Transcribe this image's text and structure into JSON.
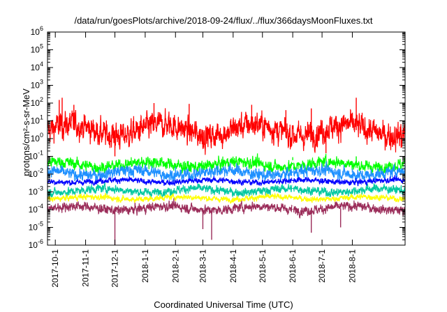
{
  "chart_data": {
    "type": "line",
    "title": "/data/run/goesPlots/archive/2018-09-24/flux/../flux/366daysMoonFluxes.txt",
    "xlabel": "Coordinated Universal Time (UTC)",
    "ylabel": "protons/cm²-s-sr-MeV",
    "y_scale": "log",
    "ylim": [
      1e-06,
      1000000.0
    ],
    "y_ticks": [
      {
        "value": 1e-06,
        "base": "10",
        "exp": "-6"
      },
      {
        "value": 1e-05,
        "base": "10",
        "exp": "-5"
      },
      {
        "value": 0.0001,
        "base": "10",
        "exp": "-4"
      },
      {
        "value": 0.001,
        "base": "10",
        "exp": "-3"
      },
      {
        "value": 0.01,
        "base": "10",
        "exp": "-2"
      },
      {
        "value": 0.1,
        "base": "10",
        "exp": "-1"
      },
      {
        "value": 1,
        "base": "10",
        "exp": "0"
      },
      {
        "value": 10,
        "base": "10",
        "exp": "1"
      },
      {
        "value": 100,
        "base": "10",
        "exp": "2"
      },
      {
        "value": 1000,
        "base": "10",
        "exp": "3"
      },
      {
        "value": 10000,
        "base": "10",
        "exp": "4"
      },
      {
        "value": 100000,
        "base": "10",
        "exp": "5"
      },
      {
        "value": 1000000,
        "base": "10",
        "exp": "6"
      }
    ],
    "xlim": [
      "2017-09-23",
      "2018-09-24"
    ],
    "x_ticks": [
      "2017-10-1",
      "2017-11-1",
      "2017-12-1",
      "2018-1-1",
      "2018-2-1",
      "2018-3-1",
      "2018-4-1",
      "2018-5-1",
      "2018-6-1",
      "2018-7-1",
      "2018-8-1"
    ],
    "grid": false,
    "series": [
      {
        "color": "#ff0000",
        "median": 3.0,
        "noise_decades": 0.55,
        "points": [
          [
            "2017-10-05",
            150
          ],
          [
            "2017-10-08",
            200
          ],
          [
            "2017-10-20",
            80
          ],
          [
            "2017-12-01",
            0.1
          ],
          [
            "2018-01-10",
            100
          ],
          [
            "2018-02-15",
            90
          ],
          [
            "2018-03-01",
            0.3
          ],
          [
            "2018-04-20",
            80
          ],
          [
            "2018-05-25",
            40
          ],
          [
            "2018-06-20",
            50
          ],
          [
            "2018-07-05",
            0.15
          ],
          [
            "2018-08-05",
            200
          ],
          [
            "2018-09-20",
            0.3
          ]
        ]
      },
      {
        "color": "#00ff00",
        "median": 0.035,
        "noise_decades": 0.25,
        "points": [
          [
            "2017-10-01",
            0.07
          ],
          [
            "2018-01-10",
            0.08
          ],
          [
            "2018-06-01",
            0.09
          ],
          [
            "2018-08-05",
            0.1
          ]
        ]
      },
      {
        "color": "#1e90ff",
        "median": 0.012,
        "noise_decades": 0.25,
        "points": [
          [
            "2017-10-01",
            0.02
          ],
          [
            "2018-02-01",
            0.025
          ],
          [
            "2018-08-01",
            0.02
          ]
        ]
      },
      {
        "color": "#0000ff",
        "median": 0.004,
        "noise_decades": 0.12,
        "points": [
          [
            "2017-10-01",
            0.004
          ],
          [
            "2018-05-01",
            0.004
          ],
          [
            "2018-09-20",
            0.004
          ]
        ]
      },
      {
        "color": "#00c8a0",
        "median": 0.0012,
        "noise_decades": 0.18,
        "points": [
          [
            "2017-10-01",
            0.0012
          ],
          [
            "2018-03-01",
            0.0015
          ],
          [
            "2018-09-20",
            0.0012
          ]
        ]
      },
      {
        "color": "#ffff00",
        "median": 0.00045,
        "noise_decades": 0.12,
        "points": [
          [
            "2017-10-01",
            0.0005
          ],
          [
            "2018-06-01",
            0.0004
          ],
          [
            "2018-09-20",
            0.0005
          ]
        ]
      },
      {
        "color": "#9b2d5a",
        "median": 0.00012,
        "noise_decades": 0.2,
        "points": [
          [
            "2017-12-01",
            1e-06
          ],
          [
            "2018-03-01",
            8e-06
          ],
          [
            "2018-03-10",
            2e-06
          ],
          [
            "2018-06-20",
            5e-06
          ],
          [
            "2018-07-20",
            1e-05
          ]
        ]
      }
    ],
    "data_gap": "2018-06-01"
  }
}
